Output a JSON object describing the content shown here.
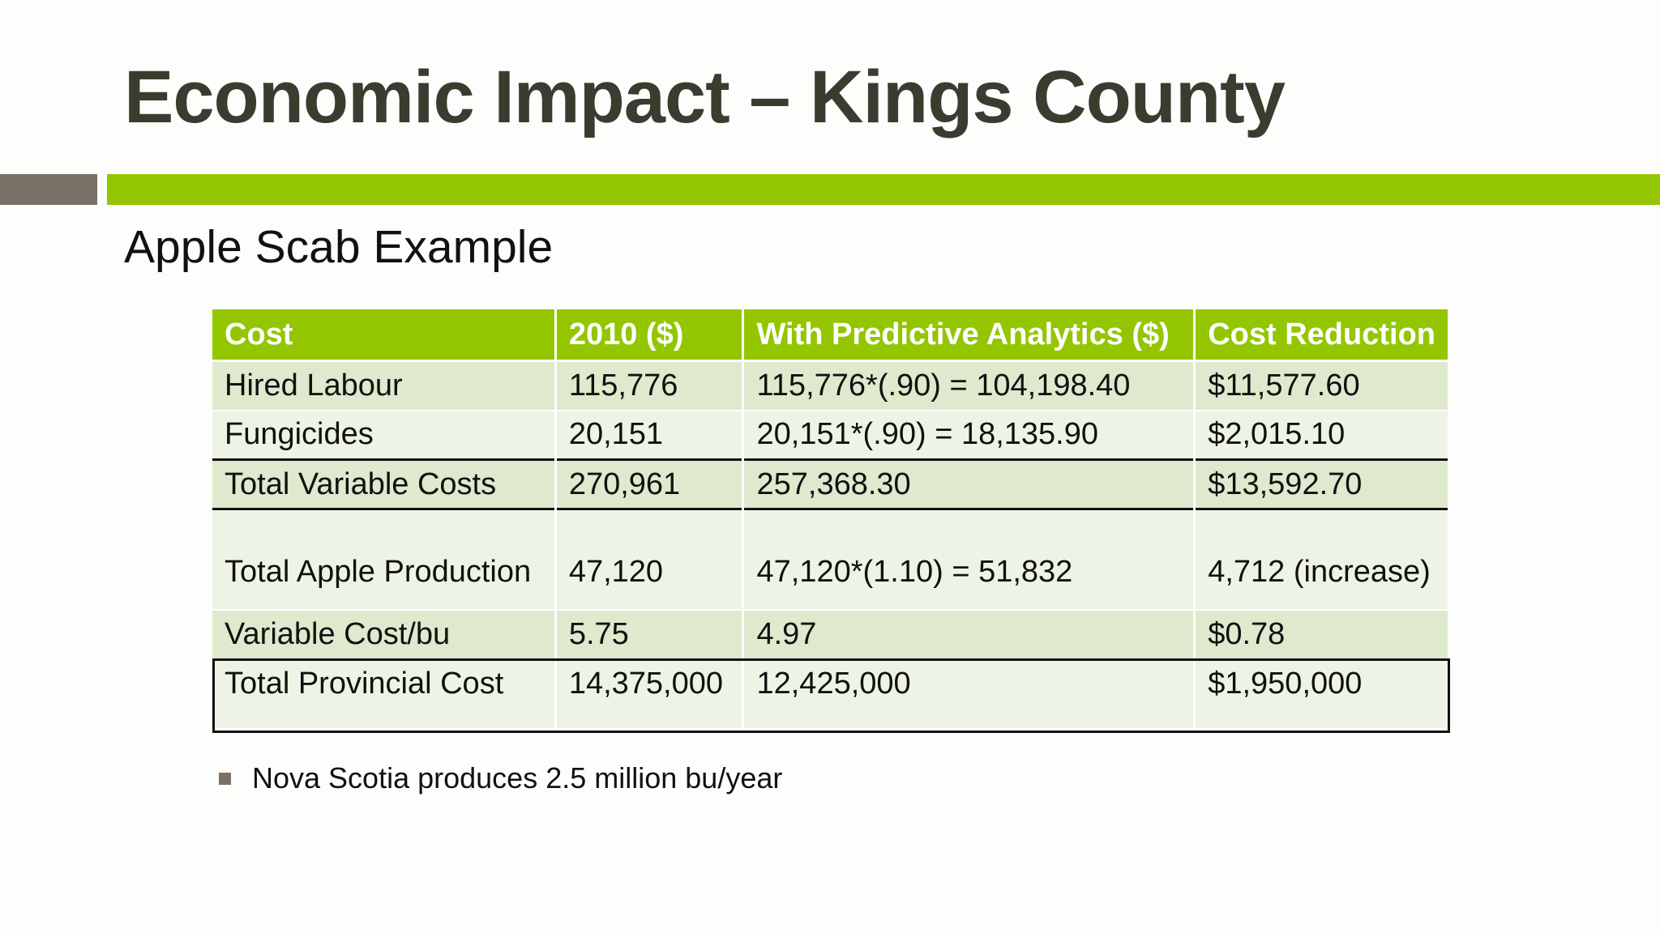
{
  "slide": {
    "title": "Economic Impact – Kings County",
    "subtitle": "Apple Scab Example"
  },
  "table": {
    "headers": [
      "Cost",
      "2010 ($)",
      "With Predictive Analytics ($)",
      "Cost Reduction"
    ],
    "rows": [
      [
        "Hired Labour",
        "115,776",
        "115,776*(.90) = 104,198.40",
        "$11,577.60"
      ],
      [
        "Fungicides",
        "20,151",
        "20,151*(.90) = 18,135.90",
        "$2,015.10"
      ],
      [
        "Total Variable Costs",
        "270,961",
        "257,368.30",
        "$13,592.70"
      ],
      [
        "Total Apple Production",
        "47,120",
        "47,120*(1.10) = 51,832",
        "4,712 (increase)"
      ],
      [
        "Variable Cost/bu",
        "5.75",
        "4.97",
        "$0.78"
      ],
      [
        "Total Provincial Cost",
        "14,375,000",
        "12,425,000",
        "$1,950,000"
      ]
    ]
  },
  "bullets": [
    "Nova Scotia produces 2.5 million bu/year"
  ],
  "colors": {
    "accent_green": "#93c600",
    "accent_gray": "#7a7066",
    "title_text": "#3b3b2f",
    "row_dark": "#dfe9cd",
    "row_light": "#eef4e5"
  }
}
